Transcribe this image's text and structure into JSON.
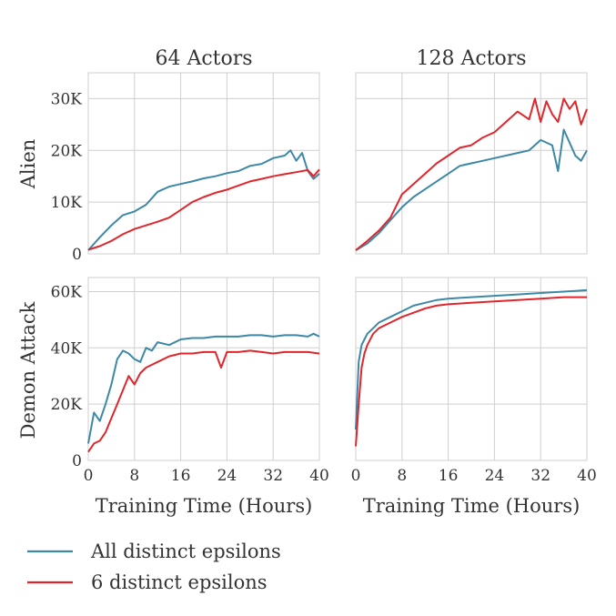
{
  "colors": {
    "all": "#3d88a6",
    "six": "#e0262d",
    "grid": "#cfcfcf",
    "text": "#333333"
  },
  "column_titles": [
    "64 Actors",
    "128 Actors"
  ],
  "row_labels": [
    "Alien",
    "Demon Attack"
  ],
  "x_axis_label": "Training Time (Hours)",
  "legend": {
    "items": [
      {
        "label": "All distinct epsilons",
        "color": "#3d88a6"
      },
      {
        "label": "6 distinct epsilons",
        "color": "#e0262d"
      }
    ]
  },
  "chart_data": [
    {
      "type": "line",
      "title": "64 Actors",
      "ylabel": "Alien",
      "xlabel": "",
      "xlim": [
        0,
        40
      ],
      "ylim": [
        0,
        35000
      ],
      "xticks": [
        0,
        8,
        16,
        24,
        32,
        40
      ],
      "xtick_labels": [],
      "yticks": [
        0,
        10000,
        20000,
        30000
      ],
      "ytick_labels": [
        "0",
        "10K",
        "20K",
        "30K"
      ],
      "grid": true,
      "series": [
        {
          "name": "All distinct epsilons",
          "color": "#3d88a6",
          "x": [
            0,
            2,
            4,
            6,
            8,
            10,
            12,
            14,
            16,
            18,
            20,
            22,
            24,
            26,
            28,
            30,
            32,
            34,
            35,
            36,
            37,
            38,
            39,
            40
          ],
          "y": [
            700,
            3200,
            5500,
            7500,
            8200,
            9500,
            12000,
            13000,
            13500,
            14000,
            14600,
            15000,
            15600,
            16000,
            17000,
            17400,
            18500,
            19000,
            20000,
            18000,
            19500,
            16000,
            14500,
            15500
          ]
        },
        {
          "name": "6 distinct epsilons",
          "color": "#e0262d",
          "x": [
            0,
            2,
            4,
            6,
            8,
            10,
            12,
            14,
            16,
            18,
            20,
            22,
            24,
            26,
            28,
            30,
            32,
            34,
            36,
            38,
            39,
            40
          ],
          "y": [
            800,
            1500,
            2500,
            3800,
            4800,
            5500,
            6200,
            7000,
            8500,
            10000,
            11000,
            11800,
            12400,
            13200,
            14000,
            14500,
            15000,
            15400,
            15800,
            16200,
            15000,
            16300
          ]
        }
      ]
    },
    {
      "type": "line",
      "title": "128 Actors",
      "ylabel": "",
      "xlabel": "",
      "xlim": [
        0,
        40
      ],
      "ylim": [
        0,
        35000
      ],
      "xticks": [
        0,
        8,
        16,
        24,
        32,
        40
      ],
      "xtick_labels": [],
      "yticks": [
        0,
        10000,
        20000,
        30000
      ],
      "ytick_labels": [],
      "grid": true,
      "series": [
        {
          "name": "All distinct epsilons",
          "color": "#3d88a6",
          "x": [
            0,
            2,
            4,
            6,
            8,
            10,
            12,
            14,
            16,
            18,
            20,
            22,
            24,
            26,
            28,
            30,
            32,
            34,
            35,
            36,
            37,
            38,
            39,
            40
          ],
          "y": [
            700,
            2000,
            4000,
            6500,
            9000,
            11000,
            12500,
            14000,
            15500,
            17000,
            17500,
            18000,
            18500,
            19000,
            19500,
            20000,
            22000,
            21000,
            16000,
            24000,
            21500,
            19000,
            18000,
            20000
          ]
        },
        {
          "name": "6 distinct epsilons",
          "color": "#e0262d",
          "x": [
            0,
            2,
            4,
            6,
            8,
            10,
            12,
            14,
            16,
            18,
            20,
            22,
            24,
            26,
            28,
            30,
            31,
            32,
            33,
            34,
            35,
            36,
            37,
            38,
            39,
            40
          ],
          "y": [
            700,
            2500,
            4500,
            7000,
            11500,
            13500,
            15500,
            17500,
            19000,
            20500,
            21000,
            22500,
            23500,
            25500,
            27500,
            26000,
            30000,
            25500,
            29500,
            27000,
            25500,
            30000,
            28000,
            29500,
            25000,
            28000
          ]
        }
      ]
    },
    {
      "type": "line",
      "title": "",
      "ylabel": "Demon Attack",
      "xlabel": "Training Time (Hours)",
      "xlim": [
        0,
        40
      ],
      "ylim": [
        0,
        65000
      ],
      "xticks": [
        0,
        8,
        16,
        24,
        32,
        40
      ],
      "xtick_labels": [
        "0",
        "8",
        "16",
        "24",
        "32",
        "40"
      ],
      "yticks": [
        0,
        20000,
        40000,
        60000
      ],
      "ytick_labels": [
        "0",
        "20K",
        "40K",
        "60K"
      ],
      "grid": true,
      "series": [
        {
          "name": "All distinct epsilons",
          "color": "#3d88a6",
          "x": [
            0,
            1,
            2,
            3,
            4,
            5,
            6,
            7,
            8,
            9,
            10,
            11,
            12,
            14,
            16,
            18,
            20,
            22,
            24,
            26,
            28,
            30,
            32,
            34,
            36,
            38,
            39,
            40
          ],
          "y": [
            6000,
            17000,
            14000,
            20000,
            27000,
            36000,
            39000,
            38000,
            36000,
            35000,
            40000,
            39000,
            42000,
            41000,
            43000,
            43500,
            43500,
            44000,
            44000,
            44000,
            44500,
            44500,
            44000,
            44500,
            44500,
            44000,
            45000,
            44000
          ]
        },
        {
          "name": "6 distinct epsilons",
          "color": "#e0262d",
          "x": [
            0,
            1,
            2,
            3,
            4,
            5,
            6,
            7,
            8,
            9,
            10,
            11,
            12,
            14,
            16,
            18,
            20,
            22,
            23,
            24,
            26,
            28,
            30,
            32,
            34,
            36,
            38,
            40
          ],
          "y": [
            3000,
            6000,
            7000,
            10000,
            15000,
            20000,
            25000,
            30000,
            27000,
            31000,
            33000,
            34000,
            35000,
            37000,
            38000,
            38000,
            38500,
            38500,
            33000,
            38500,
            38500,
            39000,
            38500,
            38000,
            38500,
            38500,
            38500,
            38000
          ]
        }
      ]
    },
    {
      "type": "line",
      "title": "",
      "ylabel": "",
      "xlabel": "Training Time (Hours)",
      "xlim": [
        0,
        40
      ],
      "ylim": [
        0,
        65000
      ],
      "xticks": [
        0,
        8,
        16,
        24,
        32,
        40
      ],
      "xtick_labels": [
        "0",
        "8",
        "16",
        "24",
        "32",
        "40"
      ],
      "yticks": [
        0,
        20000,
        40000,
        60000
      ],
      "ytick_labels": [],
      "grid": true,
      "series": [
        {
          "name": "All distinct epsilons",
          "color": "#3d88a6",
          "x": [
            0,
            0.5,
            1,
            1.5,
            2,
            3,
            4,
            6,
            8,
            10,
            12,
            14,
            16,
            20,
            24,
            28,
            32,
            36,
            40
          ],
          "y": [
            11000,
            35000,
            41000,
            43000,
            45000,
            47000,
            49000,
            51000,
            53000,
            55000,
            56000,
            57000,
            57500,
            58000,
            58500,
            59000,
            59500,
            60000,
            60500
          ]
        },
        {
          "name": "6 distinct epsilons",
          "color": "#e0262d",
          "x": [
            0,
            0.5,
            1,
            1.5,
            2,
            3,
            4,
            6,
            8,
            10,
            12,
            14,
            16,
            20,
            24,
            28,
            32,
            36,
            40
          ],
          "y": [
            5000,
            20000,
            33000,
            38000,
            41000,
            45000,
            47000,
            49000,
            51000,
            52500,
            54000,
            55000,
            55500,
            56000,
            56500,
            57000,
            57500,
            58000,
            58000
          ]
        }
      ]
    }
  ]
}
